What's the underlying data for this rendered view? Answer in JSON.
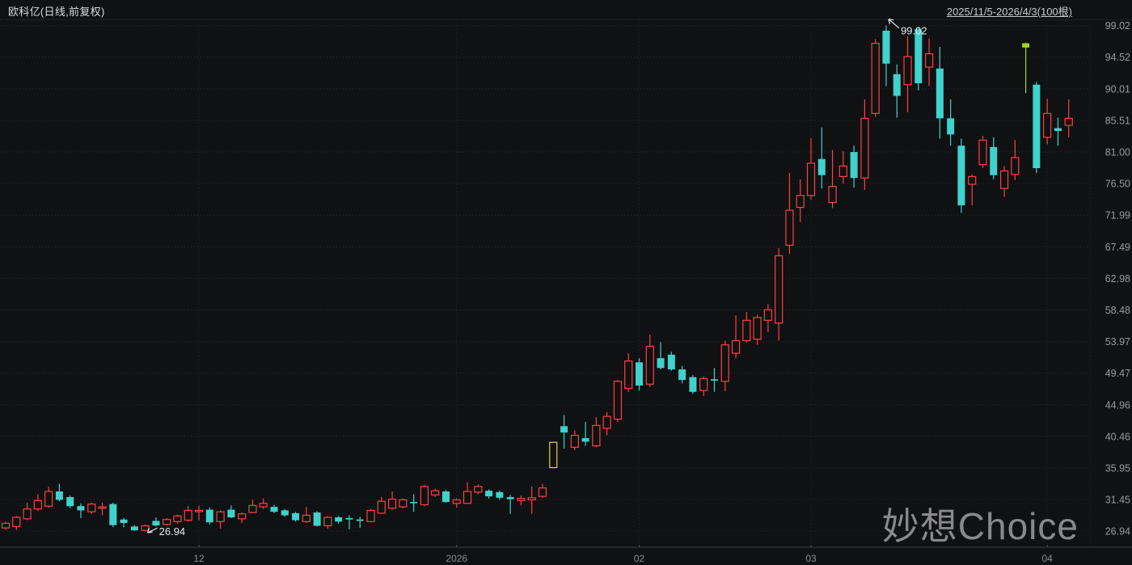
{
  "header": {
    "title": "欧科亿(日线,前复权)",
    "range_label": "2025/11/5-2026/4/3(100根)"
  },
  "watermark": "妙想Choice",
  "colors": {
    "background": "#101113",
    "up": "#ff4040",
    "down": "#40d2cc",
    "limit_up_hollow": "#e0d34c",
    "limit_up_solid": "#a4d329",
    "grid": "#2a2a2a",
    "vgrid": "#232323",
    "axis_line": "#3c3c3c",
    "y_label": "#9b9b9b",
    "x_label": "#8c8c8c",
    "annotation": "#eaeaea"
  },
  "chart_data": {
    "type": "candlestick",
    "title": "欧科亿(日线,前复权)",
    "period": "daily",
    "adjustment": "前复权",
    "bar_count": 100,
    "date_range": "2025/11/5-2026/4/3",
    "y_axis": {
      "max": 99.02,
      "min": 26.94,
      "labels": [
        "99.02",
        "94.52",
        "90.01",
        "85.51",
        "81.00",
        "76.50",
        "71.99",
        "67.49",
        "62.98",
        "58.48",
        "53.97",
        "49.47",
        "44.96",
        "40.46",
        "35.95",
        "31.45",
        "26.94"
      ]
    },
    "x_axis": {
      "ticks": [
        {
          "label": "12",
          "index": 18
        },
        {
          "label": "2026",
          "index": 42
        },
        {
          "label": "02",
          "index": 59
        },
        {
          "label": "03",
          "index": 75
        },
        {
          "label": "04",
          "index": 97
        }
      ]
    },
    "annotations": {
      "high": {
        "index": 82,
        "label": "99.02"
      },
      "low": {
        "index": 13,
        "label": "26.94"
      }
    },
    "special_candles": {
      "51": "limit_up_hollow",
      "95": "limit_up_solid"
    },
    "candles": [
      [
        27.4,
        28.3,
        27.1,
        28.05
      ],
      [
        27.6,
        29.1,
        27.1,
        28.9
      ],
      [
        28.7,
        31.0,
        28.5,
        30.1
      ],
      [
        30.1,
        32.2,
        29.8,
        31.3
      ],
      [
        30.5,
        33.3,
        30.3,
        32.6
      ],
      [
        32.6,
        33.7,
        31.2,
        31.4
      ],
      [
        31.8,
        32.0,
        30.2,
        30.5
      ],
      [
        30.5,
        30.9,
        28.8,
        29.9
      ],
      [
        29.7,
        31.0,
        29.4,
        30.8
      ],
      [
        30.2,
        31.0,
        29.2,
        30.4
      ],
      [
        30.8,
        31.0,
        27.5,
        27.8
      ],
      [
        28.6,
        28.8,
        27.5,
        28.1
      ],
      [
        27.6,
        27.8,
        27.0,
        27.05
      ],
      [
        27.05,
        27.9,
        26.94,
        27.7
      ],
      [
        28.4,
        28.9,
        27.6,
        27.75
      ],
      [
        27.9,
        28.8,
        27.7,
        28.6
      ],
      [
        28.3,
        29.3,
        28.0,
        29.1
      ],
      [
        28.5,
        30.5,
        28.3,
        29.9
      ],
      [
        29.8,
        30.6,
        28.5,
        29.9
      ],
      [
        30.0,
        30.3,
        27.9,
        28.2
      ],
      [
        28.3,
        29.9,
        27.3,
        29.7
      ],
      [
        30.0,
        30.6,
        28.8,
        28.9
      ],
      [
        28.7,
        29.6,
        28.1,
        29.4
      ],
      [
        29.6,
        31.4,
        29.5,
        30.6
      ],
      [
        30.4,
        31.6,
        30.1,
        30.9
      ],
      [
        30.4,
        30.7,
        29.5,
        29.7
      ],
      [
        29.9,
        30.1,
        29.0,
        29.2
      ],
      [
        29.5,
        29.7,
        28.3,
        28.5
      ],
      [
        28.3,
        30.4,
        28.1,
        29.2
      ],
      [
        29.6,
        29.8,
        27.6,
        27.7
      ],
      [
        27.7,
        29.1,
        27.3,
        28.9
      ],
      [
        28.9,
        29.1,
        28.0,
        28.3
      ],
      [
        28.8,
        29.2,
        27.2,
        28.6
      ],
      [
        28.6,
        29.0,
        27.4,
        28.4
      ],
      [
        28.3,
        30.1,
        28.2,
        29.9
      ],
      [
        29.5,
        31.8,
        29.4,
        31.2
      ],
      [
        30.2,
        32.6,
        30.0,
        31.5
      ],
      [
        30.4,
        31.6,
        30.2,
        31.4
      ],
      [
        31.1,
        32.2,
        29.7,
        31.0
      ],
      [
        30.7,
        33.5,
        30.5,
        33.3
      ],
      [
        32.1,
        33.0,
        31.8,
        32.7
      ],
      [
        32.6,
        32.8,
        31.0,
        31.1
      ],
      [
        30.9,
        31.6,
        30.3,
        31.4
      ],
      [
        30.9,
        33.9,
        30.8,
        32.6
      ],
      [
        32.5,
        33.6,
        32.2,
        33.3
      ],
      [
        32.7,
        32.9,
        31.6,
        31.9
      ],
      [
        32.5,
        32.7,
        31.4,
        31.7
      ],
      [
        31.8,
        32.1,
        29.4,
        31.5
      ],
      [
        31.3,
        32.0,
        30.6,
        31.6
      ],
      [
        31.4,
        33.3,
        29.4,
        31.7
      ],
      [
        31.9,
        33.7,
        31.7,
        33.1
      ],
      [
        36.0,
        39.65,
        35.9,
        39.6
      ],
      [
        41.9,
        43.5,
        38.7,
        41.0
      ],
      [
        38.9,
        41.3,
        38.5,
        40.6
      ],
      [
        40.2,
        42.5,
        39.1,
        39.7
      ],
      [
        39.1,
        43.2,
        38.9,
        42.0
      ],
      [
        41.6,
        43.9,
        40.6,
        43.3
      ],
      [
        42.9,
        48.5,
        42.5,
        48.3
      ],
      [
        47.3,
        52.3,
        46.8,
        51.2
      ],
      [
        51.0,
        51.6,
        47.0,
        47.7
      ],
      [
        47.9,
        55.0,
        47.5,
        53.3
      ],
      [
        51.6,
        53.9,
        50.0,
        50.2
      ],
      [
        52.1,
        52.5,
        49.8,
        50.0
      ],
      [
        50.0,
        50.5,
        48.0,
        48.5
      ],
      [
        48.9,
        49.2,
        46.5,
        46.8
      ],
      [
        47.0,
        49.0,
        46.2,
        48.7
      ],
      [
        48.6,
        50.2,
        46.8,
        48.4
      ],
      [
        48.3,
        54.1,
        46.9,
        53.5
      ],
      [
        52.3,
        57.7,
        51.6,
        54.1
      ],
      [
        54.1,
        58.2,
        53.8,
        57.0
      ],
      [
        54.3,
        57.8,
        53.5,
        57.4
      ],
      [
        57.0,
        59.3,
        55.3,
        58.5
      ],
      [
        56.6,
        67.3,
        54.1,
        66.2
      ],
      [
        67.7,
        78.0,
        66.5,
        72.7
      ],
      [
        73.1,
        77.1,
        71.0,
        74.8
      ],
      [
        74.8,
        83.0,
        74.2,
        79.4
      ],
      [
        80.0,
        84.5,
        75.8,
        77.7
      ],
      [
        73.8,
        81.3,
        73.0,
        76.1
      ],
      [
        77.5,
        81.1,
        76.5,
        79.0
      ],
      [
        81.0,
        81.9,
        75.9,
        77.3
      ],
      [
        77.3,
        88.5,
        75.6,
        85.8
      ],
      [
        86.5,
        97.1,
        86.0,
        96.5
      ],
      [
        98.3,
        99.02,
        90.4,
        93.6
      ],
      [
        92.1,
        93.5,
        85.9,
        89.0
      ],
      [
        90.6,
        97.5,
        86.7,
        94.6
      ],
      [
        98.5,
        98.8,
        89.8,
        90.8
      ],
      [
        93.1,
        97.2,
        90.4,
        95.0
      ],
      [
        92.9,
        96.0,
        82.9,
        85.8
      ],
      [
        85.8,
        88.5,
        81.9,
        83.5
      ],
      [
        81.9,
        82.9,
        72.3,
        73.4
      ],
      [
        76.4,
        77.8,
        73.4,
        77.5
      ],
      [
        79.2,
        83.3,
        78.7,
        82.7
      ],
      [
        81.7,
        83.1,
        77.1,
        77.7
      ],
      [
        75.8,
        79.0,
        74.6,
        78.3
      ],
      [
        77.8,
        82.7,
        77.0,
        80.2
      ],
      [
        96.5,
        96.6,
        89.4,
        95.9
      ],
      [
        90.6,
        91.0,
        78.0,
        78.7
      ],
      [
        83.1,
        88.6,
        82.1,
        86.5
      ],
      [
        84.4,
        85.9,
        81.9,
        84.0
      ],
      [
        84.8,
        88.5,
        83.1,
        85.8
      ]
    ]
  }
}
